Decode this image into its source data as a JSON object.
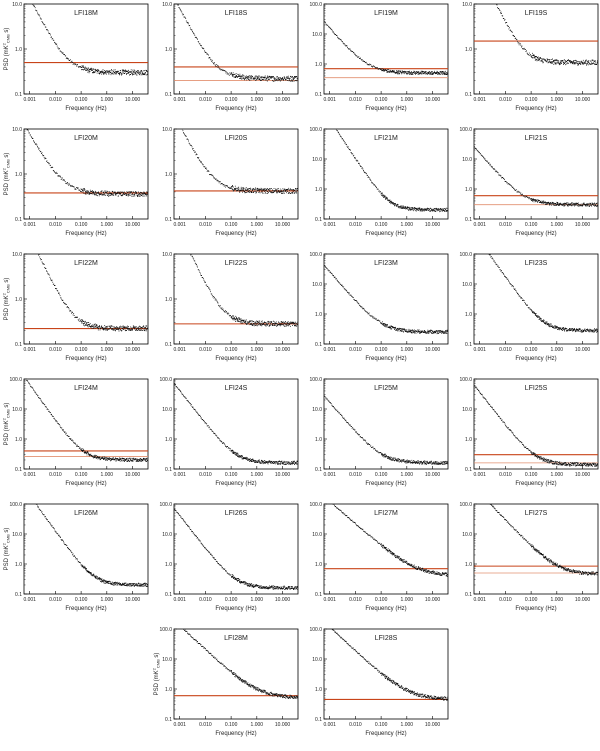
{
  "figure": {
    "ylabel_text": "PSD (mK",
    "ylabel_sup": "2",
    "ylabel_sub": "CMB",
    "ylabel_tail": " s)",
    "colors": {
      "spectrum": "#111111",
      "model": "#c8441a",
      "model_light": "#e29070",
      "model_alt": "#a070b0"
    }
  },
  "chart_data": [
    {
      "type": "scatter",
      "title": "LFI18M",
      "xlabel": "Frequency (Hz)",
      "ylabel": "PSD",
      "xlim": [
        0.0006,
        40
      ],
      "ylim": [
        0.1,
        10
      ],
      "yticks": [
        "0.1",
        "1.0",
        "10.0"
      ],
      "xticks": [
        "0.001",
        "0.010",
        "0.100",
        "1.000",
        "10.000"
      ],
      "floor": 0.3,
      "knee": 0.03,
      "alpha": 1.1,
      "hlines": [
        0.5
      ]
    },
    {
      "type": "scatter",
      "title": "LFI18S",
      "xlabel": "Frequency (Hz)",
      "ylabel": "PSD",
      "xlim": [
        0.0006,
        40
      ],
      "ylim": [
        0.1,
        10
      ],
      "yticks": [
        "0.1",
        "1.0",
        "10.0"
      ],
      "xticks": [
        "0.001",
        "0.010",
        "0.100",
        "1.000",
        "10.000"
      ],
      "floor": 0.22,
      "knee": 0.025,
      "alpha": 1.1,
      "hlines": [
        0.4,
        0.2
      ]
    },
    {
      "type": "scatter",
      "title": "LFI19M",
      "xlabel": "Frequency (Hz)",
      "ylabel": "PSD",
      "xlim": [
        0.0006,
        40
      ],
      "ylim": [
        0.1,
        100
      ],
      "yticks": [
        "0.1",
        "1.0",
        "10.0",
        "100.0"
      ],
      "xticks": [
        "0.001",
        "0.010",
        "0.100",
        "1.000",
        "10.000"
      ],
      "floor": 0.5,
      "knee": 0.03,
      "alpha": 1.0,
      "hlines": [
        0.7,
        0.35
      ]
    },
    {
      "type": "scatter",
      "title": "LFI19S",
      "xlabel": "Frequency (Hz)",
      "ylabel": "PSD",
      "xlim": [
        0.0006,
        40
      ],
      "ylim": [
        0.1,
        10
      ],
      "yticks": [
        "0.1",
        "1.0",
        "10.0"
      ],
      "xticks": [
        "0.001",
        "0.010",
        "0.100",
        "1.000",
        "10.000"
      ],
      "floor": 0.5,
      "knee": 0.05,
      "alpha": 1.2,
      "hlines": [
        1.5
      ]
    },
    {
      "type": "scatter",
      "title": "LFI20M",
      "xlabel": "Frequency (Hz)",
      "ylabel": "PSD",
      "xlim": [
        0.0006,
        40
      ],
      "ylim": [
        0.1,
        10
      ],
      "yticks": [
        "0.1",
        "1.0",
        "10.0"
      ],
      "xticks": [
        "0.001",
        "0.010",
        "0.100",
        "1.000",
        "10.000"
      ],
      "floor": 0.36,
      "knee": 0.02,
      "alpha": 1.0,
      "hlines": [
        0.38
      ]
    },
    {
      "type": "scatter",
      "title": "LFI20S",
      "xlabel": "Frequency (Hz)",
      "ylabel": "PSD",
      "xlim": [
        0.0006,
        40
      ],
      "ylim": [
        0.1,
        10
      ],
      "yticks": [
        "0.1",
        "1.0",
        "10.0"
      ],
      "xticks": [
        "0.001",
        "0.010",
        "0.100",
        "1.000",
        "10.000"
      ],
      "floor": 0.42,
      "knee": 0.02,
      "alpha": 1.1,
      "hlines": [
        0.42
      ]
    },
    {
      "type": "scatter",
      "title": "LFI21M",
      "xlabel": "Frequency (Hz)",
      "ylabel": "PSD",
      "xlim": [
        0.0006,
        40
      ],
      "ylim": [
        0.1,
        100
      ],
      "yticks": [
        "0.1",
        "1.0",
        "10.0",
        "100.0"
      ],
      "xticks": [
        "0.001",
        "0.010",
        "0.100",
        "1.000",
        "10.000"
      ],
      "floor": 0.2,
      "knee": 0.2,
      "alpha": 1.3,
      "hlines": []
    },
    {
      "type": "scatter",
      "title": "LFI21S",
      "xlabel": "Frequency (Hz)",
      "ylabel": "PSD",
      "xlim": [
        0.0006,
        40
      ],
      "ylim": [
        0.1,
        100
      ],
      "yticks": [
        "0.1",
        "1.0",
        "10.0",
        "100.0"
      ],
      "xticks": [
        "0.001",
        "0.010",
        "0.100",
        "1.000",
        "10.000"
      ],
      "floor": 0.3,
      "knee": 0.05,
      "alpha": 1.0,
      "hlines": [
        0.6,
        0.3
      ]
    },
    {
      "type": "scatter",
      "title": "LFI22M",
      "xlabel": "Frequency (Hz)",
      "ylabel": "PSD",
      "xlim": [
        0.0006,
        40
      ],
      "ylim": [
        0.1,
        10
      ],
      "yticks": [
        "0.1",
        "1.0",
        "10.0"
      ],
      "xticks": [
        "0.001",
        "0.010",
        "0.100",
        "1.000",
        "10.000"
      ],
      "floor": 0.22,
      "knee": 0.05,
      "alpha": 1.2,
      "hlines": [
        0.22
      ]
    },
    {
      "type": "scatter",
      "title": "LFI22S",
      "xlabel": "Frequency (Hz)",
      "ylabel": "PSD",
      "xlim": [
        0.0006,
        40
      ],
      "ylim": [
        0.1,
        10
      ],
      "yticks": [
        "0.1",
        "1.0",
        "10.0"
      ],
      "xticks": [
        "0.001",
        "0.010",
        "0.100",
        "1.000",
        "10.000"
      ],
      "floor": 0.28,
      "knee": 0.05,
      "alpha": 1.2,
      "hlines": [
        0.28
      ]
    },
    {
      "type": "scatter",
      "title": "LFI23M",
      "xlabel": "Frequency (Hz)",
      "ylabel": "PSD",
      "xlim": [
        0.0006,
        40
      ],
      "ylim": [
        0.1,
        100
      ],
      "yticks": [
        "0.1",
        "1.0",
        "10.0",
        "100.0"
      ],
      "xticks": [
        "0.001",
        "0.010",
        "0.100",
        "1.000",
        "10.000"
      ],
      "floor": 0.25,
      "knee": 0.1,
      "alpha": 1.0,
      "hlines": []
    },
    {
      "type": "scatter",
      "title": "LFI23S",
      "xlabel": "Frequency (Hz)",
      "ylabel": "PSD",
      "xlim": [
        0.0006,
        40
      ],
      "ylim": [
        0.1,
        100
      ],
      "yticks": [
        "0.1",
        "1.0",
        "10.0",
        "100.0"
      ],
      "xticks": [
        "0.001",
        "0.010",
        "0.100",
        "1.000",
        "10.000"
      ],
      "floor": 0.28,
      "knee": 0.3,
      "alpha": 1.2,
      "hlines": []
    },
    {
      "type": "scatter",
      "title": "LFI24M",
      "xlabel": "Frequency (Hz)",
      "ylabel": "PSD",
      "xlim": [
        0.0006,
        40
      ],
      "ylim": [
        0.1,
        100
      ],
      "yticks": [
        "0.1",
        "1.0",
        "10.0",
        "100.0"
      ],
      "xticks": [
        "0.001",
        "0.010",
        "0.100",
        "1.000",
        "10.000"
      ],
      "floor": 0.2,
      "knee": 0.12,
      "alpha": 1.2,
      "hlines": [
        0.4,
        0.26
      ]
    },
    {
      "type": "scatter",
      "title": "LFI24S",
      "xlabel": "Frequency (Hz)",
      "ylabel": "PSD",
      "xlim": [
        0.0006,
        40
      ],
      "ylim": [
        0.1,
        100
      ],
      "yticks": [
        "0.1",
        "1.0",
        "10.0",
        "100.0"
      ],
      "xticks": [
        "0.001",
        "0.010",
        "0.100",
        "1.000",
        "10.000"
      ],
      "floor": 0.16,
      "knee": 0.15,
      "alpha": 1.1,
      "hlines": []
    },
    {
      "type": "scatter",
      "title": "LFI25M",
      "xlabel": "Frequency (Hz)",
      "ylabel": "PSD",
      "xlim": [
        0.0006,
        40
      ],
      "ylim": [
        0.1,
        100
      ],
      "yticks": [
        "0.1",
        "1.0",
        "10.0",
        "100.0"
      ],
      "xticks": [
        "0.001",
        "0.010",
        "0.100",
        "1.000",
        "10.000"
      ],
      "floor": 0.16,
      "knee": 0.1,
      "alpha": 1.0,
      "hlines": []
    },
    {
      "type": "scatter",
      "title": "LFI25S",
      "xlabel": "Frequency (Hz)",
      "ylabel": "PSD",
      "xlim": [
        0.0006,
        40
      ],
      "ylim": [
        0.1,
        100
      ],
      "yticks": [
        "0.1",
        "1.0",
        "10.0",
        "100.0"
      ],
      "xticks": [
        "0.001",
        "0.010",
        "0.100",
        "1.000",
        "10.000"
      ],
      "floor": 0.14,
      "knee": 0.15,
      "alpha": 1.1,
      "hlines": [
        0.3,
        0.16
      ]
    },
    {
      "type": "scatter",
      "title": "LFI26M",
      "xlabel": "Frequency (Hz)",
      "ylabel": "PSD",
      "xlim": [
        0.0006,
        40
      ],
      "ylim": [
        0.1,
        100
      ],
      "yticks": [
        "0.1",
        "1.0",
        "10.0",
        "100.0"
      ],
      "xticks": [
        "0.001",
        "0.010",
        "0.100",
        "1.000",
        "10.000"
      ],
      "floor": 0.2,
      "knee": 0.3,
      "alpha": 1.2,
      "hlines": []
    },
    {
      "type": "scatter",
      "title": "LFI26S",
      "xlabel": "Frequency (Hz)",
      "ylabel": "PSD",
      "xlim": [
        0.0006,
        40
      ],
      "ylim": [
        0.1,
        100
      ],
      "yticks": [
        "0.1",
        "1.0",
        "10.0",
        "100.0"
      ],
      "xticks": [
        "0.001",
        "0.010",
        "0.100",
        "1.000",
        "10.000"
      ],
      "floor": 0.16,
      "knee": 0.15,
      "alpha": 1.1,
      "hlines": []
    },
    {
      "type": "scatter",
      "title": "LFI27M",
      "xlabel": "Frequency (Hz)",
      "ylabel": "PSD",
      "xlim": [
        0.0006,
        40
      ],
      "ylim": [
        0.1,
        100
      ],
      "yticks": [
        "0.1",
        "1.0",
        "10.0",
        "100.0"
      ],
      "xticks": [
        "0.001",
        "0.010",
        "0.100",
        "1.000",
        "10.000"
      ],
      "floor": 0.4,
      "knee": 2.0,
      "alpha": 0.75,
      "hlines": [
        0.7
      ]
    },
    {
      "type": "scatter",
      "title": "LFI27S",
      "xlabel": "Frequency (Hz)",
      "ylabel": "PSD",
      "xlim": [
        0.0006,
        40
      ],
      "ylim": [
        0.1,
        100
      ],
      "yticks": [
        "0.1",
        "1.0",
        "10.0",
        "100.0"
      ],
      "xticks": [
        "0.001",
        "0.010",
        "0.100",
        "1.000",
        "10.000"
      ],
      "floor": 0.45,
      "knee": 1.0,
      "alpha": 0.9,
      "hlines": [
        0.85,
        0.5
      ]
    },
    {
      "type": "scatter",
      "title": "LFI28M",
      "xlabel": "Frequency (Hz)",
      "ylabel": "PSD",
      "xlim": [
        0.0006,
        40
      ],
      "ylim": [
        0.1,
        100
      ],
      "yticks": [
        "0.1",
        "1.0",
        "10.0",
        "100.0"
      ],
      "xticks": [
        "0.001",
        "0.010",
        "0.100",
        "1.000",
        "10.000"
      ],
      "floor": 0.5,
      "knee": 1.0,
      "alpha": 0.8,
      "hlines": [
        0.6
      ]
    },
    {
      "type": "scatter",
      "title": "LFI28S",
      "xlabel": "Frequency (Hz)",
      "ylabel": "PSD",
      "xlim": [
        0.0006,
        40
      ],
      "ylim": [
        0.1,
        100
      ],
      "yticks": [
        "0.1",
        "1.0",
        "10.0",
        "100.0"
      ],
      "xticks": [
        "0.001",
        "0.010",
        "0.100",
        "1.000",
        "10.000"
      ],
      "floor": 0.45,
      "knee": 1.0,
      "alpha": 0.8,
      "hlines": [
        0.45
      ]
    }
  ]
}
